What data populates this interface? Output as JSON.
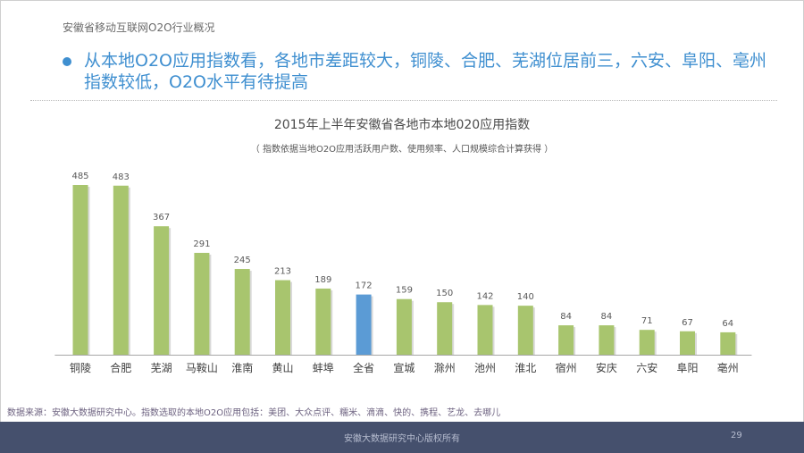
{
  "section_title": "安徽省移动互联网O2O行业概况",
  "headline": "从本地O2O应用指数看，各地市差距较大，铜陵、合肥、芜湖位居前三，六安、阜阳、亳州指数较低，O2O水平有待提高",
  "chart_data": {
    "type": "bar",
    "title": "2015年上半年安徽省各地市本地020应用指数",
    "subtitle": "（ 指数依据当地O2O应用活跃用户数、使用频率、人口规模综合计算获得 ）",
    "categories": [
      "铜陵",
      "合肥",
      "芜湖",
      "马鞍山",
      "淮南",
      "黄山",
      "蚌埠",
      "全省",
      "宣城",
      "滁州",
      "池州",
      "淮北",
      "宿州",
      "安庆",
      "六安",
      "阜阳",
      "亳州"
    ],
    "values": [
      485,
      483,
      367,
      291,
      245,
      213,
      189,
      172,
      159,
      150,
      142,
      140,
      84,
      84,
      71,
      67,
      64
    ],
    "highlight_category": "全省",
    "colors": {
      "bar": "#a8c56e",
      "highlight": "#5b9bd5",
      "bar_shadow": "#d9d9d9",
      "axis": "#a6a6a6",
      "label": "#595959"
    },
    "ylim": [
      0,
      485
    ],
    "grid": false,
    "legend": "none"
  },
  "source_note": "数据来源：安徽大数据研究中心。指数选取的本地O2O应用包括：美团、大众点评、糯米、滴滴、快的、携程、艺龙、去哪儿",
  "footer": {
    "text": "安徽大数据研究中心版权所有",
    "page": "29"
  },
  "colors": {
    "accent": "#3f8fd0",
    "footer_bg": "#45506d"
  }
}
